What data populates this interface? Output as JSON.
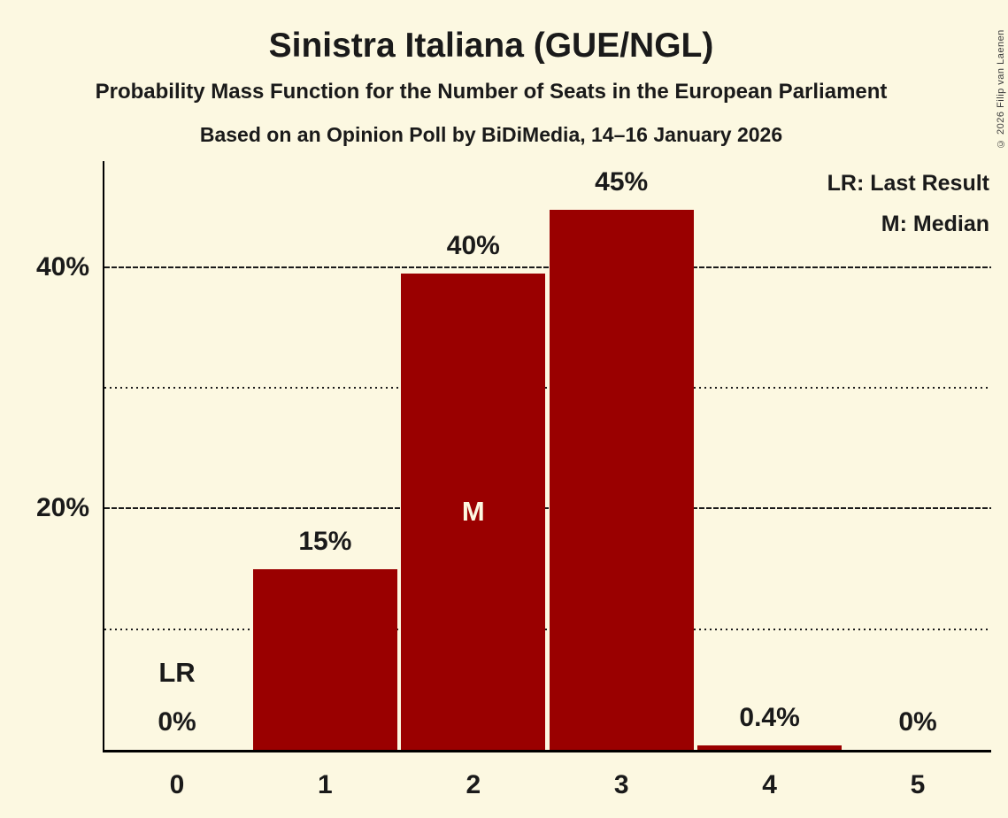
{
  "copyright": "© 2026 Filip van Laenen",
  "chart_data": {
    "type": "bar",
    "title": "Sinistra Italiana (GUE/NGL)",
    "subtitle": "Probability Mass Function for the Number of Seats in the European Parliament",
    "source_line": "Based on an Opinion Poll by BiDiMedia, 14–16 January 2026",
    "xlabel": "",
    "ylabel": "",
    "categories": [
      "0",
      "1",
      "2",
      "3",
      "4",
      "5"
    ],
    "values": [
      0,
      15,
      39.5,
      44.8,
      0.4,
      0
    ],
    "value_labels": [
      "0%",
      "15%",
      "40%",
      "45%",
      "0.4%",
      "0%"
    ],
    "ylim": [
      0,
      48.8
    ],
    "major_gridlines": [
      20,
      40
    ],
    "minor_gridlines": [
      10,
      30
    ],
    "ytick_labels": [
      "20%",
      "40%"
    ],
    "grid": "on",
    "legend_position": "top-right",
    "legend": [
      "LR: Last Result",
      "M: Median"
    ],
    "annotations": [
      {
        "category_index": 0,
        "text": "LR",
        "meaning": "Last Result",
        "placement": "above-value-label"
      },
      {
        "category_index": 2,
        "text": "M",
        "meaning": "Median",
        "placement": "inside-bar"
      }
    ],
    "colors": {
      "bar": "#9A0000",
      "background": "#FCF8E1",
      "text": "#1a1a1a",
      "median_label": "#FCF8E1"
    }
  }
}
